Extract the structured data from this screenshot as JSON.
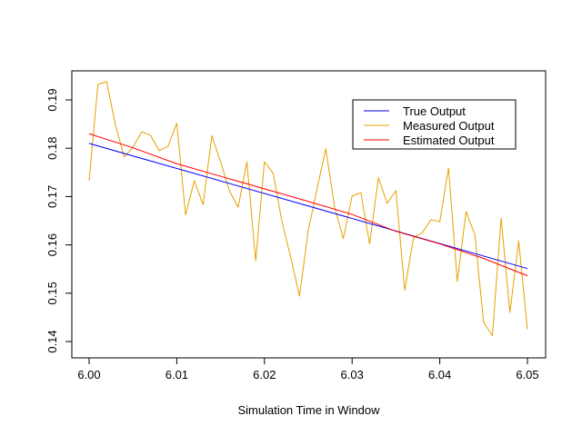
{
  "chart_data": {
    "type": "line",
    "title": "",
    "xlabel": "Simulation Time in Window",
    "ylabel": "",
    "xlim": [
      6.0,
      6.05
    ],
    "ylim": [
      0.14,
      0.19
    ],
    "x_ticks": [
      {
        "value": 6.0,
        "label": "6.00"
      },
      {
        "value": 6.01,
        "label": "6.01"
      },
      {
        "value": 6.02,
        "label": "6.02"
      },
      {
        "value": 6.03,
        "label": "6.03"
      },
      {
        "value": 6.04,
        "label": "6.04"
      },
      {
        "value": 6.05,
        "label": "6.05"
      }
    ],
    "y_ticks": [
      {
        "value": 0.14,
        "label": "0.14"
      },
      {
        "value": 0.15,
        "label": "0.15"
      },
      {
        "value": 0.16,
        "label": "0.16"
      },
      {
        "value": 0.17,
        "label": "0.17"
      },
      {
        "value": 0.18,
        "label": "0.18"
      },
      {
        "value": 0.19,
        "label": "0.19"
      }
    ],
    "grid": false,
    "legend": {
      "position": "top-right",
      "entries": [
        "True Output",
        "Measured Output",
        "Estimated Output"
      ]
    },
    "series": [
      {
        "name": "True Output",
        "color": "#0000FF",
        "x": [
          6.0,
          6.05
        ],
        "y": [
          0.181,
          0.1551
        ]
      },
      {
        "name": "Measured Output",
        "color": "#E6A000",
        "x": [
          6.0,
          6.001,
          6.002,
          6.003,
          6.004,
          6.005,
          6.006,
          6.007,
          6.008,
          6.009,
          6.01,
          6.011,
          6.012,
          6.013,
          6.014,
          6.015,
          6.016,
          6.017,
          6.018,
          6.019,
          6.02,
          6.021,
          6.022,
          6.023,
          6.024,
          6.025,
          6.026,
          6.027,
          6.028,
          6.029,
          6.03,
          6.031,
          6.032,
          6.033,
          6.034,
          6.035,
          6.036,
          6.037,
          6.038,
          6.039,
          6.04,
          6.041,
          6.042,
          6.043,
          6.044,
          6.045,
          6.046,
          6.047,
          6.048,
          6.049,
          6.05
        ],
        "y": [
          0.1733,
          0.1932,
          0.1938,
          0.1848,
          0.1782,
          0.1802,
          0.1834,
          0.1827,
          0.1795,
          0.1804,
          0.1852,
          0.1662,
          0.1733,
          0.1683,
          0.1826,
          0.1772,
          0.1712,
          0.1678,
          0.1772,
          0.1567,
          0.1772,
          0.1748,
          0.1648,
          0.1574,
          0.1494,
          0.163,
          0.1716,
          0.1799,
          0.1678,
          0.1613,
          0.1701,
          0.1708,
          0.1602,
          0.1739,
          0.1686,
          0.1712,
          0.1506,
          0.1615,
          0.1625,
          0.1652,
          0.1648,
          0.1759,
          0.1524,
          0.1669,
          0.1621,
          0.144,
          0.1412,
          0.1655,
          0.146,
          0.1608,
          0.1425
        ]
      },
      {
        "name": "Estimated Output",
        "color": "#FF0000",
        "x": [
          6.0,
          6.005,
          6.01,
          6.015,
          6.02,
          6.025,
          6.03,
          6.035,
          6.04,
          6.045,
          6.05
        ],
        "y": [
          0.183,
          0.1801,
          0.1768,
          0.1742,
          0.1716,
          0.169,
          0.1663,
          0.1628,
          0.1602,
          0.1572,
          0.1536
        ]
      }
    ]
  }
}
